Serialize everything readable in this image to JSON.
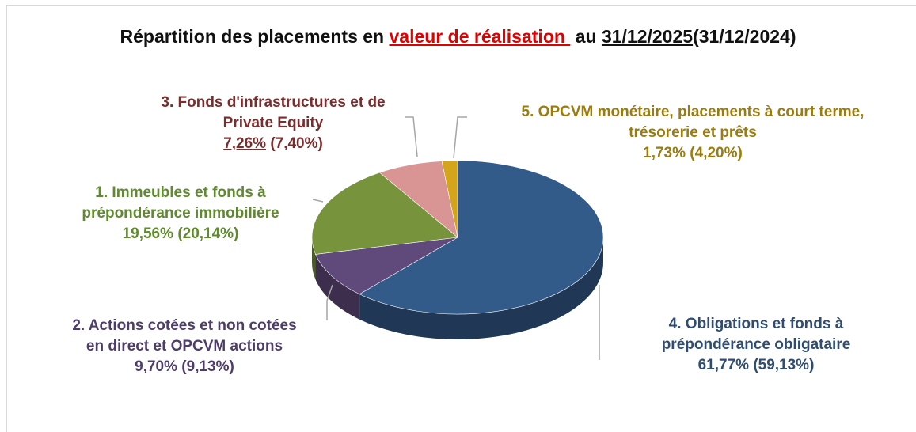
{
  "chart_data": {
    "type": "pie",
    "title_parts": [
      "Répartition des placements en ",
      "valeur de réalisation ",
      " au ",
      "31/12/2025",
      "(31/12/2024)"
    ],
    "categories": [
      [
        "4. Obligations et fonds à",
        "prépondérance obligataire"
      ],
      [
        "2. Actions cotées et non cotées",
        "en direct et OPCVM actions"
      ],
      [
        "1. Immeubles et fonds à",
        "prépondérance immobilière"
      ],
      [
        "3. Fonds d'infrastructures  et de",
        "Private Equity"
      ],
      [
        "5. OPCVM monétaire, placements à court terme,",
        "trésorerie et prêts"
      ]
    ],
    "values": [
      61.77,
      9.7,
      19.56,
      7.26,
      1.73
    ],
    "value_labels": [
      "61,77%",
      "9,70%",
      "19,56%",
      "7,26%",
      "1,73%"
    ],
    "previous_labels": [
      "(59,13%)",
      "(9,13%)",
      "(20,14%)",
      "(7,40%)",
      "(4,20%)"
    ],
    "colors": [
      "#335b8a",
      "#604a7b",
      "#77933c",
      "#d99594",
      "#d4a51a"
    ],
    "label_colors": [
      "#2f4d72",
      "#4e3d6b",
      "#5f8a2e",
      "#7b2c2c",
      "#9c7c0c"
    ]
  }
}
